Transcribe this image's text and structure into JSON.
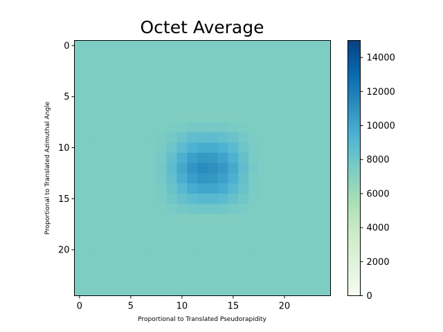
{
  "chart_data": {
    "type": "heatmap",
    "title": "Octet Average",
    "xlabel": "Proportional to Translated Pseudorapidity",
    "ylabel": "Proportional to Translated Azimuthal Angle",
    "n_cols": 25,
    "n_rows": 25,
    "x_ticks": [
      0,
      5,
      10,
      15,
      20
    ],
    "y_ticks": [
      0,
      5,
      10,
      15,
      20
    ],
    "colorbar": {
      "colormap": "GnBu",
      "range": [
        0,
        15000
      ],
      "ticks": [
        0,
        2000,
        4000,
        6000,
        8000,
        10000,
        12000,
        14000
      ]
    },
    "background_value": 7400,
    "hot_region": {
      "rows": [
        7,
        8,
        9,
        10,
        11,
        12,
        13,
        14,
        15,
        16,
        17
      ],
      "cols": [
        8,
        9,
        10,
        11,
        12,
        13,
        14,
        15,
        16,
        17
      ],
      "values": [
        [
          7400,
          7300,
          7300,
          7300,
          7300,
          7300,
          7300,
          7300,
          7300,
          7400
        ],
        [
          7400,
          7500,
          7600,
          7700,
          7700,
          7700,
          7700,
          7600,
          7500,
          7400
        ],
        [
          7500,
          7800,
          8200,
          8600,
          8700,
          8700,
          8500,
          8200,
          7800,
          7500
        ],
        [
          7600,
          8100,
          8800,
          9400,
          9700,
          9700,
          9400,
          8800,
          8100,
          7600
        ],
        [
          7700,
          8500,
          9500,
          10300,
          10700,
          10600,
          10200,
          9400,
          8400,
          7600
        ],
        [
          7800,
          8700,
          9900,
          10800,
          11300,
          11100,
          10700,
          9800,
          8600,
          7700
        ],
        [
          7700,
          8500,
          9600,
          10400,
          10800,
          10700,
          10300,
          9500,
          8400,
          7600
        ],
        [
          7600,
          8200,
          9000,
          9700,
          10000,
          10000,
          9700,
          9000,
          8200,
          7600
        ],
        [
          7500,
          7900,
          8400,
          8800,
          9000,
          9000,
          8800,
          8300,
          7900,
          7500
        ],
        [
          7400,
          7600,
          7800,
          7900,
          8000,
          8000,
          7900,
          7700,
          7600,
          7400
        ],
        [
          7400,
          7300,
          7300,
          7300,
          7300,
          7300,
          7300,
          7300,
          7300,
          7400
        ]
      ]
    }
  }
}
